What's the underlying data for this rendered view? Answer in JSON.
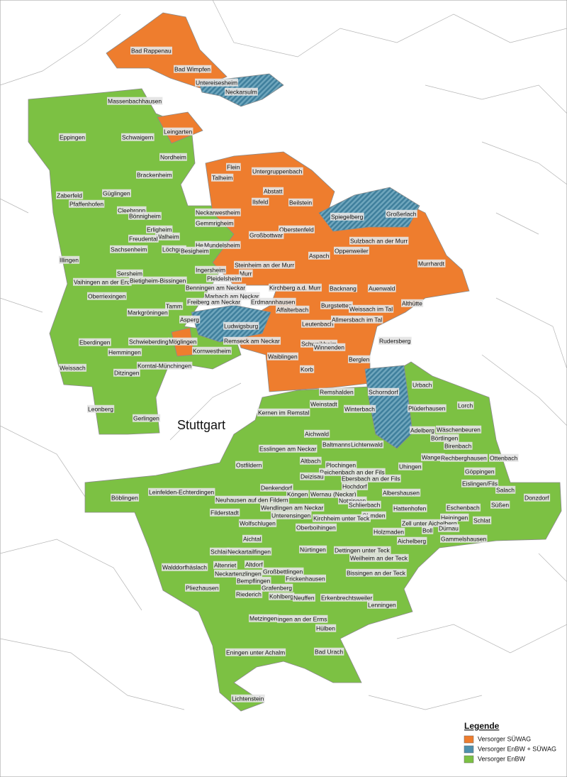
{
  "map": {
    "city": "Stuttgart",
    "labels": [
      "Bad Rappenau",
      "Bad Wimpfen",
      "Untereisesheim",
      "Neckarsulm",
      "Massenbachhausen",
      "Leingarten",
      "Eppingen",
      "Schwaigern",
      "Nordheim",
      "Flein",
      "Talheim",
      "Untergruppenbach",
      "Brackenheim",
      "Abstatt",
      "Zaberfeld",
      "Güglingen",
      "Pfaffenhofen",
      "Ilsfeld",
      "Beilstein",
      "Cleebronn",
      "Neckarwestheim",
      "Spiegelberg",
      "Großerlach",
      "Bönnigheim",
      "Gemmrigheim",
      "Oberstenfeld",
      "Erligheim",
      "Walheim",
      "Großbottwar",
      "Freudental",
      "Hessi",
      "Sulzbach an der Murr",
      "Mundelsheim",
      "Sachsenheim",
      "Löchgau",
      "Besigheim",
      "Oppenweiler",
      "Aspach",
      "Illingen",
      "Murrhardt",
      "Steinheim an der Murr",
      "Ingersheim",
      "Sersheim",
      "Murr",
      "Pleidelsheim",
      "Vaihingen an der Enz",
      "Bietigheim-Bissingen",
      "Benningen am Neckar",
      "Kirchberg a.d. Murr",
      "Backnang",
      "Auenwald",
      "Marbach am Neckar",
      "Oberriexingen",
      "Erdmannhausen",
      "Freiberg am Neckar",
      "Althütte",
      "Tamm",
      "Affalterbach",
      "Burgstetten",
      "Weissach im Tal",
      "Markgröningen",
      "Asperg",
      "Ludwigsburg",
      "Leutenbach",
      "Allmersbach im Tal",
      "Schwieberding",
      "Möglingen",
      "Remseck am Neckar",
      "Schwaikheim",
      "Rudersberg",
      "Eberdingen",
      "Hemmingen",
      "Kornwestheim",
      "Winnenden",
      "Waiblingen",
      "Berglen",
      "Korntal-Münchingen",
      "Weissach",
      "Ditzingen",
      "Korb",
      "Remshalden",
      "Schorndorf",
      "Urbach",
      "Weinstadt",
      "Lorch",
      "Kernen im Remstal",
      "Winterbach",
      "Plüderhausen",
      "Leonberg",
      "Gerlingen",
      "Adelberg",
      "Wäschenbeuren",
      "Aichwald",
      "Börtlingen",
      "Baltmanns",
      "Lichtenwald",
      "Birenbach",
      "Esslingen am Neckar",
      "Wangen",
      "Rechberghausen",
      "Ottenbach",
      "Altbach",
      "Plochingen",
      "Ostfildern",
      "Uhingen",
      "Reichenbach an der Fils",
      "Göppingen",
      "Deizisau",
      "Ebersbach an der Fils",
      "Eislingen/Fils",
      "Salach",
      "Denkendorf",
      "Hochdorf",
      "Albershausen",
      "Böblingen",
      "Leinfelden-Echterdingen",
      "Köngen",
      "Wernau (Neckar)",
      "Donzdorf",
      "Neuhausen auf den Fildern",
      "Notzingen",
      "Schlierbach",
      "Wendlingen am Neckar",
      "Hattenhofen",
      "Süßen",
      "Eschenbach",
      "Filderstadt",
      "Unterensingen",
      "Ohmden",
      "Kirchheim unter Teck",
      "Heiningen",
      "Schlat",
      "Zell unter Aichelberg",
      "Wolfschlugen",
      "Boll",
      "Dürnau",
      "Oberboihingen",
      "Holzmaden",
      "Gammelshausen",
      "Aichelberg",
      "Aichtal",
      "Schlait",
      "Neckartailfingen",
      "Nürtingen",
      "Dettingen unter Teck",
      "Weilheim an der Teck",
      "Altenriet",
      "Altdorf",
      "Walddorfhäslach",
      "Neckartenzlingen",
      "Großbettlingen",
      "Bissingen an der Teck",
      "Frickenhausen",
      "Bempflingen",
      "Pliezhausen",
      "Grafenberg",
      "Riederich",
      "Kohlberg",
      "Neuffen",
      "Erkenbrechtsweiler",
      "Lenningen",
      "Metzingen",
      "ingen an der Erms",
      "Hülben",
      "Eningen unter Achalm",
      "Bad Urach",
      "Lichtenstein"
    ],
    "legend": {
      "title": "Legende",
      "items": [
        {
          "label": "Versorger SÜWAG",
          "color": "#ee7d2e"
        },
        {
          "label": "Versorger EnBW + SÜWAG",
          "color": "#4e90ad"
        },
        {
          "label": "Versorger EnBW",
          "color": "#7cc143"
        }
      ]
    }
  }
}
